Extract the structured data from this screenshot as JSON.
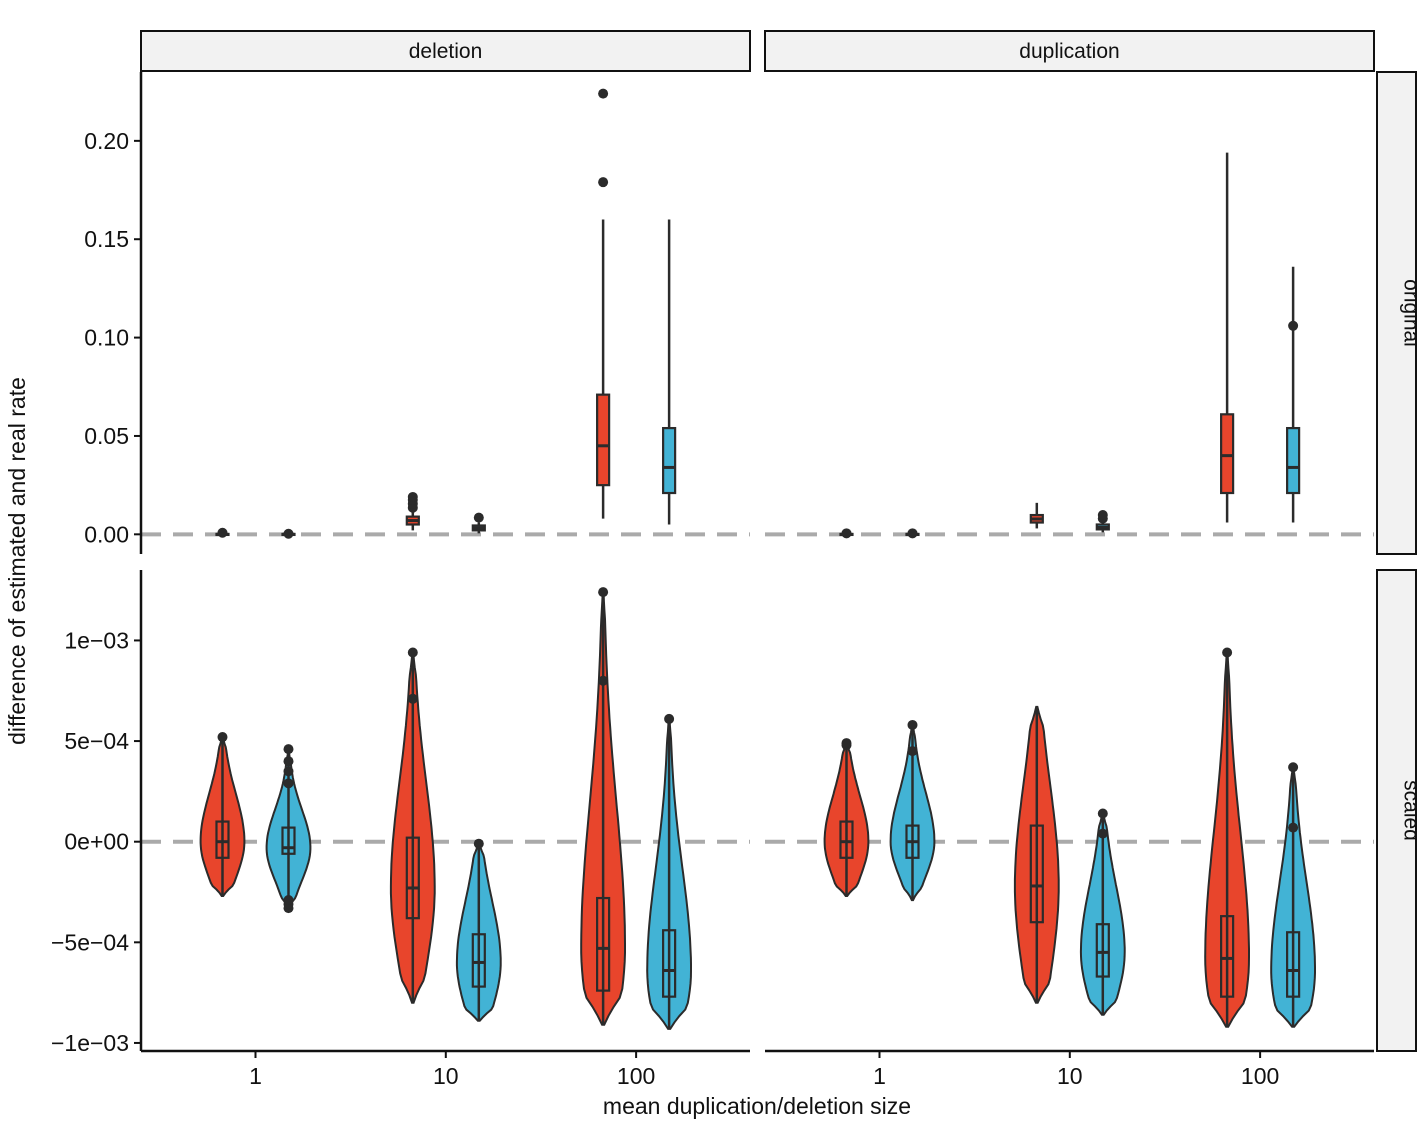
{
  "chart_data": {
    "type": "violin-boxplot",
    "xlabel": "mean duplication/deletion size",
    "ylabel": "difference of estimated and real rate",
    "facet_cols": [
      "deletion",
      "duplication"
    ],
    "facet_rows": [
      "original",
      "scaled"
    ],
    "x_categories": [
      "1",
      "10",
      "100"
    ],
    "reference_line": 0,
    "colors": {
      "groupA": "#e8452c",
      "groupB": "#42b3d5",
      "outline": "#2b2b2b",
      "refline": "#aaaaaa",
      "strip": "#f2f2f2"
    },
    "y_axes": {
      "original": {
        "ylim": [
          -0.01,
          0.235
        ],
        "ticks": [
          0,
          0.05,
          0.1,
          0.15,
          0.2
        ],
        "tick_labels": [
          "0.00",
          "0.05",
          "0.10",
          "0.15",
          "0.20"
        ]
      },
      "scaled": {
        "ylim": [
          -0.00104,
          0.00135
        ],
        "ticks": [
          -0.001,
          -0.0005,
          0,
          0.0005,
          0.001
        ],
        "tick_labels": [
          "−1e−03",
          "−5e−04",
          "0e+00",
          "5e−04",
          "1e−03"
        ]
      }
    },
    "panels": [
      {
        "row": "original",
        "col": "deletion",
        "violins": false,
        "groups": [
          {
            "x": "1",
            "fill": "A",
            "min": -0.0005,
            "q1": -0.0002,
            "median": 0,
            "q3": 0.0002,
            "max": 0.0005,
            "outliers": [
              0.0008
            ]
          },
          {
            "x": "1",
            "fill": "B",
            "min": -0.0005,
            "q1": -0.0002,
            "median": 0,
            "q3": 0.0002,
            "max": 0.0005,
            "outliers": [
              0.0003
            ]
          },
          {
            "x": "10",
            "fill": "A",
            "min": 0.002,
            "q1": 0.005,
            "median": 0.007,
            "q3": 0.009,
            "max": 0.012,
            "outliers": [
              0.0135,
              0.0155,
              0.0175,
              0.019
            ]
          },
          {
            "x": "10",
            "fill": "B",
            "min": 0.0005,
            "q1": 0.002,
            "median": 0.0032,
            "q3": 0.0045,
            "max": 0.006,
            "outliers": [
              0.0085
            ]
          },
          {
            "x": "100",
            "fill": "A",
            "min": 0.008,
            "q1": 0.025,
            "median": 0.045,
            "q3": 0.071,
            "max": 0.16,
            "outliers": [
              0.179,
              0.224
            ]
          },
          {
            "x": "100",
            "fill": "B",
            "min": 0.005,
            "q1": 0.021,
            "median": 0.034,
            "q3": 0.054,
            "max": 0.16,
            "outliers": []
          }
        ]
      },
      {
        "row": "original",
        "col": "duplication",
        "violins": false,
        "groups": [
          {
            "x": "1",
            "fill": "A",
            "min": -0.0005,
            "q1": -0.0002,
            "median": 0,
            "q3": 0.0002,
            "max": 0.0005,
            "outliers": [
              0.0005
            ]
          },
          {
            "x": "1",
            "fill": "B",
            "min": -0.0005,
            "q1": -0.0002,
            "median": 0,
            "q3": 0.0002,
            "max": 0.0005,
            "outliers": [
              0.0005
            ]
          },
          {
            "x": "10",
            "fill": "A",
            "min": 0.003,
            "q1": 0.006,
            "median": 0.0078,
            "q3": 0.0098,
            "max": 0.016,
            "outliers": []
          },
          {
            "x": "10",
            "fill": "B",
            "min": 0.001,
            "q1": 0.0025,
            "median": 0.0035,
            "q3": 0.005,
            "max": 0.0065,
            "outliers": [
              0.008,
              0.0098
            ]
          },
          {
            "x": "100",
            "fill": "A",
            "min": 0.006,
            "q1": 0.021,
            "median": 0.04,
            "q3": 0.061,
            "max": 0.194,
            "outliers": []
          },
          {
            "x": "100",
            "fill": "B",
            "min": 0.006,
            "q1": 0.021,
            "median": 0.034,
            "q3": 0.054,
            "max": 0.136,
            "outliers": [
              0.106
            ]
          }
        ]
      },
      {
        "row": "scaled",
        "col": "deletion",
        "violins": true,
        "groups": [
          {
            "x": "1",
            "fill": "A",
            "min": -0.00027,
            "q1": -8e-05,
            "median": 0,
            "q3": 0.0001,
            "max": 0.00052,
            "outliers": [
              0.00052
            ]
          },
          {
            "x": "1",
            "fill": "B",
            "min": -0.00033,
            "q1": -6e-05,
            "median": -3e-05,
            "q3": 7e-05,
            "max": 0.00045,
            "outliers": [
              -0.00033,
              -0.00031,
              -0.00029,
              0.00029,
              0.00035,
              0.0004,
              0.00046
            ]
          },
          {
            "x": "10",
            "fill": "A",
            "min": -0.0008,
            "q1": -0.00038,
            "median": -0.00023,
            "q3": 2e-05,
            "max": 0.00094,
            "outliers": [
              0.00071,
              0.00094
            ]
          },
          {
            "x": "10",
            "fill": "B",
            "min": -0.00089,
            "q1": -0.00072,
            "median": -0.0006,
            "q3": -0.00046,
            "max": -1e-05,
            "outliers": [
              -1e-05
            ]
          },
          {
            "x": "100",
            "fill": "A",
            "min": -0.00091,
            "q1": -0.00074,
            "median": -0.00053,
            "q3": -0.00028,
            "max": 0.00124,
            "outliers": [
              0.0008,
              0.00124
            ]
          },
          {
            "x": "100",
            "fill": "B",
            "min": -0.00093,
            "q1": -0.00077,
            "median": -0.00064,
            "q3": -0.00044,
            "max": 0.00061,
            "outliers": [
              0.00061
            ]
          }
        ]
      },
      {
        "row": "scaled",
        "col": "duplication",
        "violins": true,
        "groups": [
          {
            "x": "1",
            "fill": "A",
            "min": -0.00027,
            "q1": -8e-05,
            "median": 0,
            "q3": 0.0001,
            "max": 0.00049,
            "outliers": [
              0.00048,
              0.00049
            ]
          },
          {
            "x": "1",
            "fill": "B",
            "min": -0.00029,
            "q1": -8e-05,
            "median": 0,
            "q3": 8e-05,
            "max": 0.00058,
            "outliers": [
              0.00045,
              0.00058
            ]
          },
          {
            "x": "10",
            "fill": "A",
            "min": -0.0008,
            "q1": -0.0004,
            "median": -0.00022,
            "q3": 8e-05,
            "max": 0.00067,
            "outliers": []
          },
          {
            "x": "10",
            "fill": "B",
            "min": -0.00086,
            "q1": -0.00067,
            "median": -0.00055,
            "q3": -0.00041,
            "max": 0.00014,
            "outliers": [
              4e-05,
              0.00014
            ]
          },
          {
            "x": "100",
            "fill": "A",
            "min": -0.00092,
            "q1": -0.00077,
            "median": -0.00058,
            "q3": -0.00037,
            "max": 0.00094,
            "outliers": [
              0.00094
            ]
          },
          {
            "x": "100",
            "fill": "B",
            "min": -0.00092,
            "q1": -0.00077,
            "median": -0.00064,
            "q3": -0.00045,
            "max": 0.00037,
            "outliers": [
              7e-05,
              0.00037
            ]
          }
        ]
      }
    ]
  }
}
